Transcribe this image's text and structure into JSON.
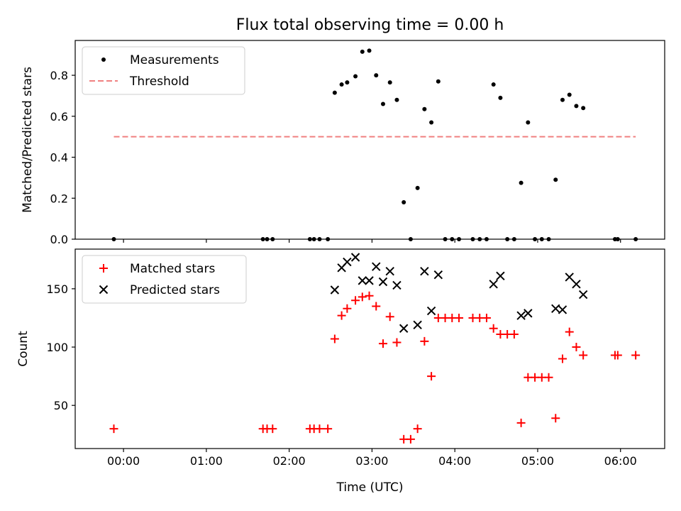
{
  "figure": {
    "title": "Flux total observing time = 0.00 h"
  },
  "chart_data": [
    {
      "type": "scatter",
      "panel": "top",
      "title": "Flux total observing time = 0.00 h",
      "xlabel": "",
      "ylabel": "Matched/Predicted stars",
      "xlim": [
        "23:25",
        "06:32"
      ],
      "ylim": [
        0.0,
        0.97
      ],
      "xticks": [
        "00:00",
        "01:00",
        "02:00",
        "03:00",
        "04:00",
        "05:00",
        "06:00"
      ],
      "yticks": [
        "0.0",
        "0.2",
        "0.4",
        "0.6",
        "0.8"
      ],
      "tick_label_visible": false,
      "legend_position": "upper left",
      "series": [
        {
          "name": "Measurements",
          "marker": "dot",
          "color": "#000000",
          "points": [
            [
              "23:53",
              0.0
            ],
            [
              "01:41",
              0.0
            ],
            [
              "01:44",
              0.0
            ],
            [
              "01:48",
              0.0
            ],
            [
              "02:15",
              0.0
            ],
            [
              "02:18",
              0.0
            ],
            [
              "02:22",
              0.0
            ],
            [
              "02:28",
              0.0
            ],
            [
              "02:33",
              0.715
            ],
            [
              "02:38",
              0.755
            ],
            [
              "02:42",
              0.765
            ],
            [
              "02:48",
              0.795
            ],
            [
              "02:53",
              0.915
            ],
            [
              "02:58",
              0.92
            ],
            [
              "03:03",
              0.8
            ],
            [
              "03:08",
              0.66
            ],
            [
              "03:13",
              0.765
            ],
            [
              "03:18",
              0.68
            ],
            [
              "03:23",
              0.18
            ],
            [
              "03:28",
              0.0
            ],
            [
              "03:33",
              0.25
            ],
            [
              "03:38",
              0.635
            ],
            [
              "03:43",
              0.57
            ],
            [
              "03:48",
              0.77
            ],
            [
              "03:53",
              0.0
            ],
            [
              "03:58",
              0.0
            ],
            [
              "04:03",
              0.0
            ],
            [
              "04:13",
              0.0
            ],
            [
              "04:18",
              0.0
            ],
            [
              "04:23",
              0.0
            ],
            [
              "04:28",
              0.755
            ],
            [
              "04:33",
              0.69
            ],
            [
              "04:38",
              0.0
            ],
            [
              "04:43",
              0.0
            ],
            [
              "04:48",
              0.275
            ],
            [
              "04:53",
              0.57
            ],
            [
              "04:58",
              0.0
            ],
            [
              "05:03",
              0.0
            ],
            [
              "05:08",
              0.0
            ],
            [
              "05:13",
              0.29
            ],
            [
              "05:18",
              0.68
            ],
            [
              "05:23",
              0.705
            ],
            [
              "05:28",
              0.65
            ],
            [
              "05:33",
              0.64
            ],
            [
              "05:56",
              0.0
            ],
            [
              "05:58",
              0.0
            ],
            [
              "06:11",
              0.0
            ]
          ]
        },
        {
          "name": "Threshold",
          "marker": "dashed-line",
          "color": "#f08080",
          "points": [
            [
              "23:53",
              0.5
            ],
            [
              "06:11",
              0.5
            ]
          ]
        }
      ]
    },
    {
      "type": "scatter",
      "panel": "bottom",
      "xlabel": "Time (UTC)",
      "ylabel": "Count",
      "xlim": [
        "23:25",
        "06:32"
      ],
      "ylim": [
        13,
        184
      ],
      "xticks": [
        "00:00",
        "01:00",
        "02:00",
        "03:00",
        "04:00",
        "05:00",
        "06:00"
      ],
      "yticks": [
        "50",
        "100",
        "150"
      ],
      "legend_position": "upper left",
      "series": [
        {
          "name": "Matched stars",
          "marker": "plus",
          "color": "#ff0000",
          "points": [
            [
              "23:53",
              30
            ],
            [
              "01:41",
              30
            ],
            [
              "01:44",
              30
            ],
            [
              "01:48",
              30
            ],
            [
              "02:15",
              30
            ],
            [
              "02:18",
              30
            ],
            [
              "02:22",
              30
            ],
            [
              "02:28",
              30
            ],
            [
              "02:33",
              107
            ],
            [
              "02:38",
              127
            ],
            [
              "02:42",
              133
            ],
            [
              "02:48",
              140
            ],
            [
              "02:53",
              143
            ],
            [
              "02:58",
              144
            ],
            [
              "03:03",
              135
            ],
            [
              "03:08",
              103
            ],
            [
              "03:13",
              126
            ],
            [
              "03:18",
              104
            ],
            [
              "03:23",
              21
            ],
            [
              "03:28",
              21
            ],
            [
              "03:33",
              30
            ],
            [
              "03:38",
              105
            ],
            [
              "03:43",
              75
            ],
            [
              "03:48",
              125
            ],
            [
              "03:53",
              125
            ],
            [
              "03:58",
              125
            ],
            [
              "04:03",
              125
            ],
            [
              "04:13",
              125
            ],
            [
              "04:18",
              125
            ],
            [
              "04:23",
              125
            ],
            [
              "04:28",
              116
            ],
            [
              "04:33",
              111
            ],
            [
              "04:38",
              111
            ],
            [
              "04:43",
              111
            ],
            [
              "04:48",
              35
            ],
            [
              "04:53",
              74
            ],
            [
              "04:58",
              74
            ],
            [
              "05:03",
              74
            ],
            [
              "05:08",
              74
            ],
            [
              "05:13",
              39
            ],
            [
              "05:18",
              90
            ],
            [
              "05:23",
              113
            ],
            [
              "05:28",
              100
            ],
            [
              "05:33",
              93
            ],
            [
              "05:56",
              93
            ],
            [
              "05:58",
              93
            ],
            [
              "06:11",
              93
            ]
          ]
        },
        {
          "name": "Predicted stars",
          "marker": "x",
          "color": "#000000",
          "points": [
            [
              "02:33",
              149
            ],
            [
              "02:38",
              168
            ],
            [
              "02:42",
              173
            ],
            [
              "02:48",
              177
            ],
            [
              "02:53",
              157
            ],
            [
              "02:58",
              157
            ],
            [
              "03:03",
              169
            ],
            [
              "03:08",
              156
            ],
            [
              "03:13",
              165
            ],
            [
              "03:18",
              153
            ],
            [
              "03:23",
              116
            ],
            [
              "03:33",
              119
            ],
            [
              "03:38",
              165
            ],
            [
              "03:43",
              131
            ],
            [
              "03:48",
              162
            ],
            [
              "04:28",
              154
            ],
            [
              "04:33",
              161
            ],
            [
              "04:48",
              127
            ],
            [
              "04:53",
              129
            ],
            [
              "05:13",
              133
            ],
            [
              "05:18",
              132
            ],
            [
              "05:23",
              160
            ],
            [
              "05:28",
              154
            ],
            [
              "05:33",
              145
            ]
          ]
        }
      ]
    }
  ]
}
